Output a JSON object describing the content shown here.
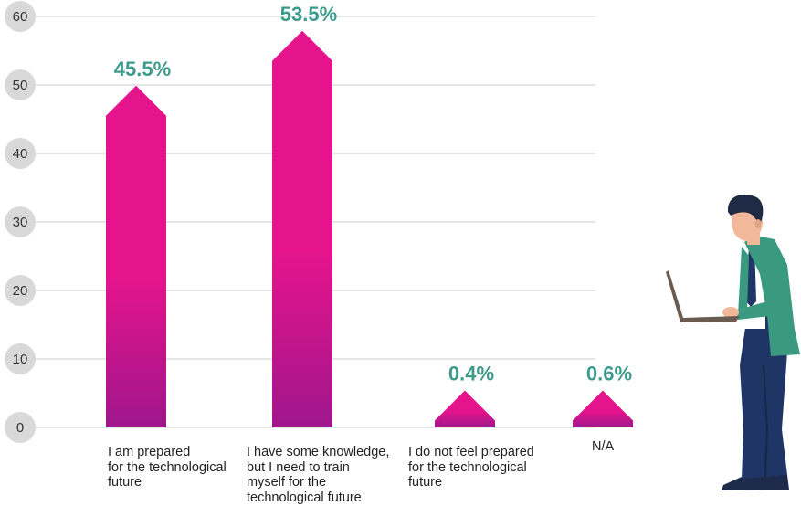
{
  "chart_data": {
    "type": "bar",
    "categories": [
      "I am prepared\nfor the technological\nfuture",
      "I have some knowledge,\nbut I need to train\nmyself for the\ntechnological future",
      "I do not feel prepared\nfor the technological\nfuture",
      "N/A"
    ],
    "values": [
      45.5,
      53.5,
      0.4,
      0.6
    ],
    "data_labels": [
      "45.5%",
      "53.5%",
      "0.4%",
      "0.6%"
    ],
    "ylim": [
      0,
      60
    ],
    "yticks": [
      0,
      10,
      20,
      30,
      40,
      50,
      60
    ],
    "ytick_labels": [
      "0",
      "10",
      "20",
      "30",
      "40",
      "50",
      "60"
    ],
    "grid": true,
    "legend": "none",
    "title": "",
    "xlabel": "",
    "ylabel": ""
  },
  "colors": {
    "bar_top": "#e6148c",
    "bar_bottom": "#a0168c",
    "data_label": "#3d9b8c",
    "tick_circle": "#d9d9d9",
    "grid": "#cccccc"
  },
  "illustration": {
    "name": "man-with-laptop-illustration"
  }
}
